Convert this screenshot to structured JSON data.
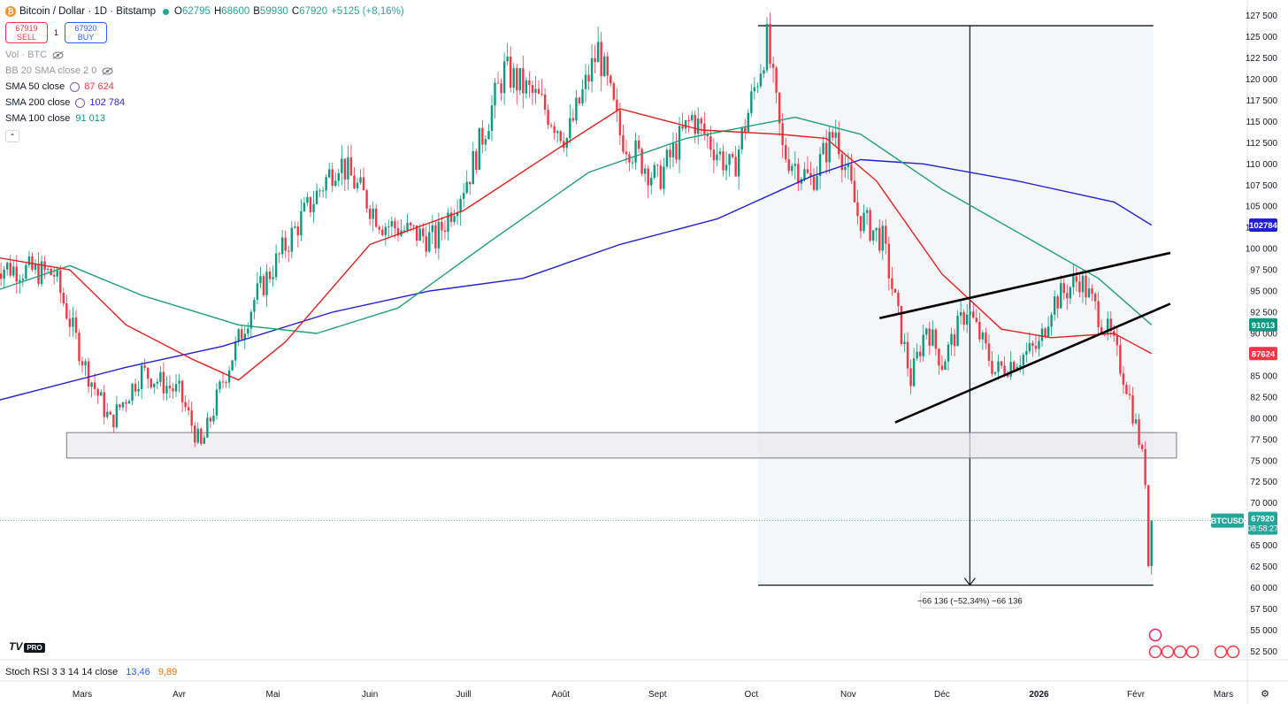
{
  "header": {
    "title": "Bitcoin / Dollar · 1D · Bitstamp",
    "ohlc": [
      {
        "k": "O",
        "v": "62795"
      },
      {
        "k": "H",
        "v": "68600"
      },
      {
        "k": "B",
        "v": "59930"
      },
      {
        "k": "C",
        "v": "67920"
      }
    ],
    "change": "+5125 (+8,16%)"
  },
  "trade": {
    "sell_price": "67919",
    "sell_label": "SELL",
    "buy_price": "67920",
    "buy_label": "BUY",
    "spread": "1"
  },
  "indicators": [
    {
      "name": "Vol · BTC",
      "value": ""
    },
    {
      "name": "BB 20 SMA close 2 0",
      "value": ""
    },
    {
      "name": "SMA 50 close",
      "value": "87 624"
    },
    {
      "name": "SMA 200 close",
      "value": "102 784"
    },
    {
      "name": "SMA 100 close",
      "value": "91 013"
    }
  ],
  "rsi": {
    "name": "Stoch RSI 3 3 14 14 close",
    "k": "13,46",
    "d": "9,89"
  },
  "logo": {
    "text": "TV",
    "badge": "PRO"
  },
  "colors": {
    "up": "#089981",
    "down": "#f23645",
    "sma50": "#e0201e",
    "sma100": "#1e9e7a",
    "sma200": "#1f1fd0"
  },
  "chart_data": {
    "type": "candlestick",
    "symbol": "BTCUSD",
    "x_ticks": [
      "Mars",
      "Avr",
      "Mai",
      "Juin",
      "Juill",
      "Août",
      "Sept",
      "Oct",
      "Nov",
      "Déc",
      "2026",
      "Févr",
      "Mars"
    ],
    "y_ticks": [
      52500,
      55000,
      57500,
      60000,
      62500,
      65000,
      67500,
      70000,
      72500,
      75000,
      77500,
      80000,
      82500,
      85000,
      87500,
      90000,
      92500,
      95000,
      97500,
      100000,
      102500,
      105000,
      107500,
      110000,
      112500,
      115000,
      117500,
      120000,
      122500,
      125000,
      127500
    ],
    "y_tick_labels": [
      "52 500",
      "55 000",
      "57 500",
      "60 000",
      "62 500",
      "65 000",
      "67 500",
      "70 000",
      "72 500",
      "75 000",
      "77 500",
      "80 000",
      "82 500",
      "85 000",
      "87 500",
      "90 000",
      "92 500",
      "95 000",
      "97 500",
      "100 000",
      "102 500",
      "105 000",
      "107 500",
      "110 000",
      "112 500",
      "115 000",
      "117 500",
      "120 000",
      "122 500",
      "125 000",
      "127 500"
    ],
    "ylim": [
      51500,
      128500
    ],
    "price_waypoints": [
      [
        "2025-02-01",
        98000
      ],
      [
        "2025-02-20",
        97000
      ],
      [
        "2025-03-02",
        86000
      ],
      [
        "2025-03-10",
        79500
      ],
      [
        "2025-03-20",
        85500
      ],
      [
        "2025-04-01",
        83000
      ],
      [
        "2025-04-08",
        76500
      ],
      [
        "2025-04-15",
        84500
      ],
      [
        "2025-04-25",
        94000
      ],
      [
        "2025-05-10",
        103500
      ],
      [
        "2025-05-22",
        110500
      ],
      [
        "2025-06-05",
        103000
      ],
      [
        "2025-06-22",
        101000
      ],
      [
        "2025-07-03",
        109000
      ],
      [
        "2025-07-14",
        121000
      ],
      [
        "2025-07-25",
        117500
      ],
      [
        "2025-08-03",
        113000
      ],
      [
        "2025-08-13",
        123500
      ],
      [
        "2025-08-20",
        113500
      ],
      [
        "2025-09-01",
        108000
      ],
      [
        "2025-09-12",
        115500
      ],
      [
        "2025-09-25",
        109000
      ],
      [
        "2025-10-06",
        124500
      ],
      [
        "2025-10-11",
        111500
      ],
      [
        "2025-10-20",
        108000
      ],
      [
        "2025-10-28",
        114000
      ],
      [
        "2025-11-04",
        104000
      ],
      [
        "2025-11-12",
        101000
      ],
      [
        "2025-11-21",
        84500
      ],
      [
        "2025-11-26",
        91000
      ],
      [
        "2025-12-01",
        86500
      ],
      [
        "2025-12-09",
        93000
      ],
      [
        "2025-12-18",
        85500
      ],
      [
        "2026-01-01",
        88500
      ],
      [
        "2026-01-05",
        93500
      ],
      [
        "2026-01-14",
        96500
      ],
      [
        "2026-01-24",
        89500
      ],
      [
        "2026-01-29",
        84000
      ],
      [
        "2026-02-02",
        77500
      ],
      [
        "2026-02-04",
        73000
      ],
      [
        "2026-02-05",
        62800
      ],
      [
        "2026-02-06",
        67920
      ]
    ],
    "sma50": [
      [
        "2025-02-01",
        99000
      ],
      [
        "2025-02-25",
        97500
      ],
      [
        "2025-03-15",
        91000
      ],
      [
        "2025-04-05",
        87000
      ],
      [
        "2025-04-20",
        84500
      ],
      [
        "2025-05-05",
        89000
      ],
      [
        "2025-06-01",
        100500
      ],
      [
        "2025-07-01",
        104500
      ],
      [
        "2025-08-01",
        112000
      ],
      [
        "2025-08-20",
        116500
      ],
      [
        "2025-09-15",
        114000
      ],
      [
        "2025-10-10",
        113500
      ],
      [
        "2025-10-25",
        113000
      ],
      [
        "2025-11-10",
        108000
      ],
      [
        "2025-12-01",
        97000
      ],
      [
        "2025-12-20",
        90500
      ],
      [
        "2026-01-05",
        89500
      ],
      [
        "2026-01-25",
        90000
      ],
      [
        "2026-02-06",
        87624
      ]
    ],
    "sma100": [
      [
        "2025-02-01",
        95000
      ],
      [
        "2025-02-25",
        98000
      ],
      [
        "2025-03-20",
        94500
      ],
      [
        "2025-04-20",
        91000
      ],
      [
        "2025-05-15",
        90000
      ],
      [
        "2025-06-10",
        93000
      ],
      [
        "2025-07-10",
        101000
      ],
      [
        "2025-08-10",
        109000
      ],
      [
        "2025-09-10",
        113000
      ],
      [
        "2025-10-01",
        114500
      ],
      [
        "2025-10-15",
        115500
      ],
      [
        "2025-11-05",
        113500
      ],
      [
        "2025-12-01",
        107000
      ],
      [
        "2026-01-01",
        100500
      ],
      [
        "2026-01-20",
        96500
      ],
      [
        "2026-02-06",
        91013
      ]
    ],
    "sma200": [
      [
        "2025-02-01",
        82000
      ],
      [
        "2025-03-15",
        86000
      ],
      [
        "2025-04-15",
        88500
      ],
      [
        "2025-05-20",
        92500
      ],
      [
        "2025-06-20",
        95000
      ],
      [
        "2025-07-20",
        96500
      ],
      [
        "2025-08-20",
        100500
      ],
      [
        "2025-09-20",
        103500
      ],
      [
        "2025-10-20",
        108500
      ],
      [
        "2025-11-05",
        110500
      ],
      [
        "2025-11-25",
        110000
      ],
      [
        "2025-12-25",
        108000
      ],
      [
        "2026-01-25",
        105500
      ],
      [
        "2026-02-06",
        102784
      ]
    ],
    "price_labels": [
      {
        "text": "102784",
        "value": 102784,
        "color": "#1f1fd0"
      },
      {
        "text": "91013",
        "value": 91013,
        "color": "#089981"
      },
      {
        "text": "87624",
        "value": 87624,
        "color": "#f23645"
      }
    ],
    "current": {
      "symbol": "BTCUSD",
      "price": "67920",
      "countdown": "08:58:27",
      "value": 67920
    },
    "support_zone": {
      "from": "2025-02-24",
      "to": "2026-02-14",
      "low": 75300,
      "high": 78300
    },
    "measure": {
      "from": "2025-10-06",
      "to": "2026-02-06",
      "high": 126300,
      "low": 60300,
      "label": "−66 136 (−52,34%) −66 136"
    },
    "wedge_upper": [
      [
        "2025-11-11",
        91800
      ],
      [
        "2026-02-12",
        99500
      ]
    ],
    "wedge_lower": [
      [
        "2025-11-16",
        79500
      ],
      [
        "2026-02-12",
        93500
      ]
    ]
  }
}
